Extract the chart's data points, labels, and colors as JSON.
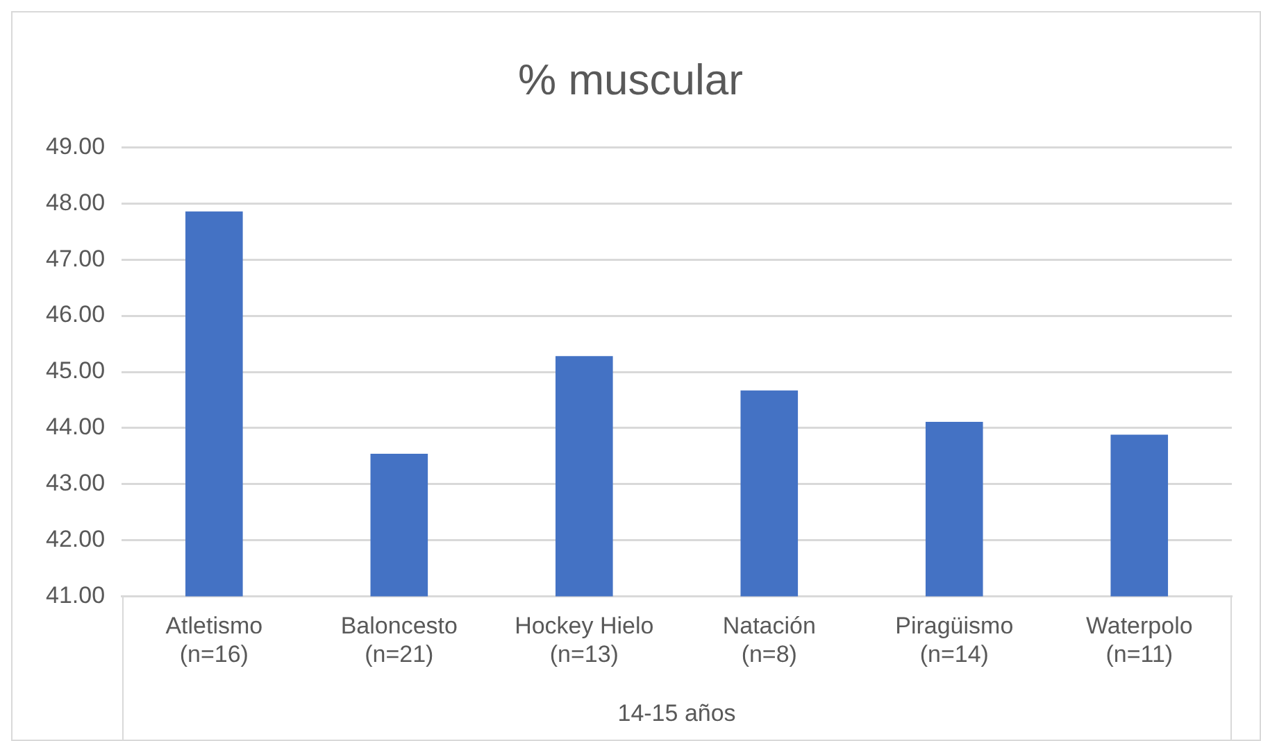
{
  "chart_data": {
    "type": "bar",
    "title": "% muscular",
    "xlabel": "14-15 años",
    "categories": [
      "Atletismo\n(n=16)",
      "Baloncesto\n(n=21)",
      "Hockey Hielo\n(n=13)",
      "Natación\n(n=8)",
      "Piragüismo\n(n=14)",
      "Waterpolo\n(n=11)"
    ],
    "values": [
      47.86,
      43.54,
      45.28,
      44.67,
      44.11,
      43.88
    ],
    "color": "#4472c4",
    "ylim": [
      41,
      49
    ],
    "yticks": [
      {
        "value": 41,
        "label": "41.00"
      },
      {
        "value": 42,
        "label": "42.00"
      },
      {
        "value": 43,
        "label": "43.00"
      },
      {
        "value": 44,
        "label": "44.00"
      },
      {
        "value": 45,
        "label": "45.00"
      },
      {
        "value": 46,
        "label": "46.00"
      },
      {
        "value": 47,
        "label": "47.00"
      },
      {
        "value": 48,
        "label": "48.00"
      },
      {
        "value": 49,
        "label": "49.00"
      }
    ],
    "grid": "y",
    "legend": false
  }
}
